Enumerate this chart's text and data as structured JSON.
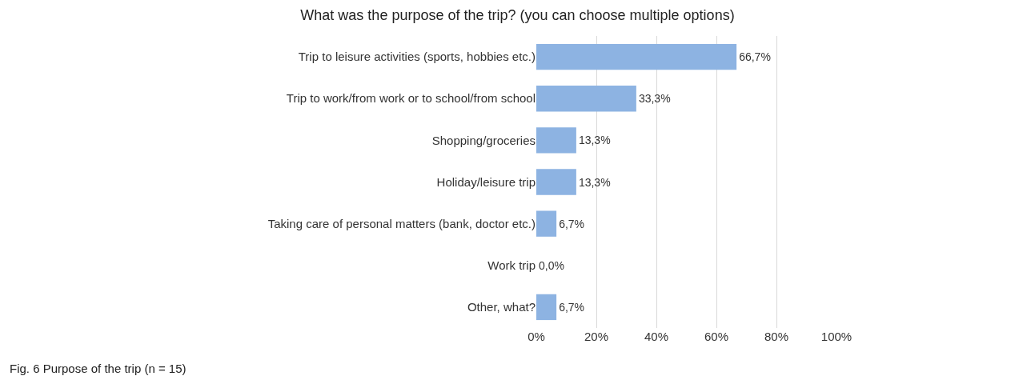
{
  "chart_data": {
    "type": "bar",
    "orientation": "horizontal",
    "title": "What was the purpose of the trip? (you can choose multiple options)",
    "categories": [
      "Trip to leisure activities (sports, hobbies etc.)",
      "Trip to work/from work or to school/from school",
      "Shopping/groceries",
      "Holiday/leisure trip",
      "Taking care of personal matters (bank, doctor etc.)",
      "Work trip",
      "Other, what?"
    ],
    "values": [
      66.7,
      33.3,
      13.3,
      13.3,
      6.7,
      0.0,
      6.7
    ],
    "value_labels": [
      "66,7%",
      "33,3%",
      "13,3%",
      "13,3%",
      "6,7%",
      "0,0%",
      "6,7%"
    ],
    "color": "#8db3e2",
    "xlim": [
      0,
      100
    ],
    "xticks": [
      {
        "value": 0,
        "label": "0%"
      },
      {
        "value": 20,
        "label": "20%"
      },
      {
        "value": 40,
        "label": "40%"
      },
      {
        "value": 60,
        "label": "60%"
      },
      {
        "value": 80,
        "label": "80%"
      },
      {
        "value": 100,
        "label": "100%"
      }
    ],
    "grid": "x",
    "legend": false,
    "annotations": [
      "Fig. 6 Purpose of the trip (n = 15)"
    ]
  }
}
